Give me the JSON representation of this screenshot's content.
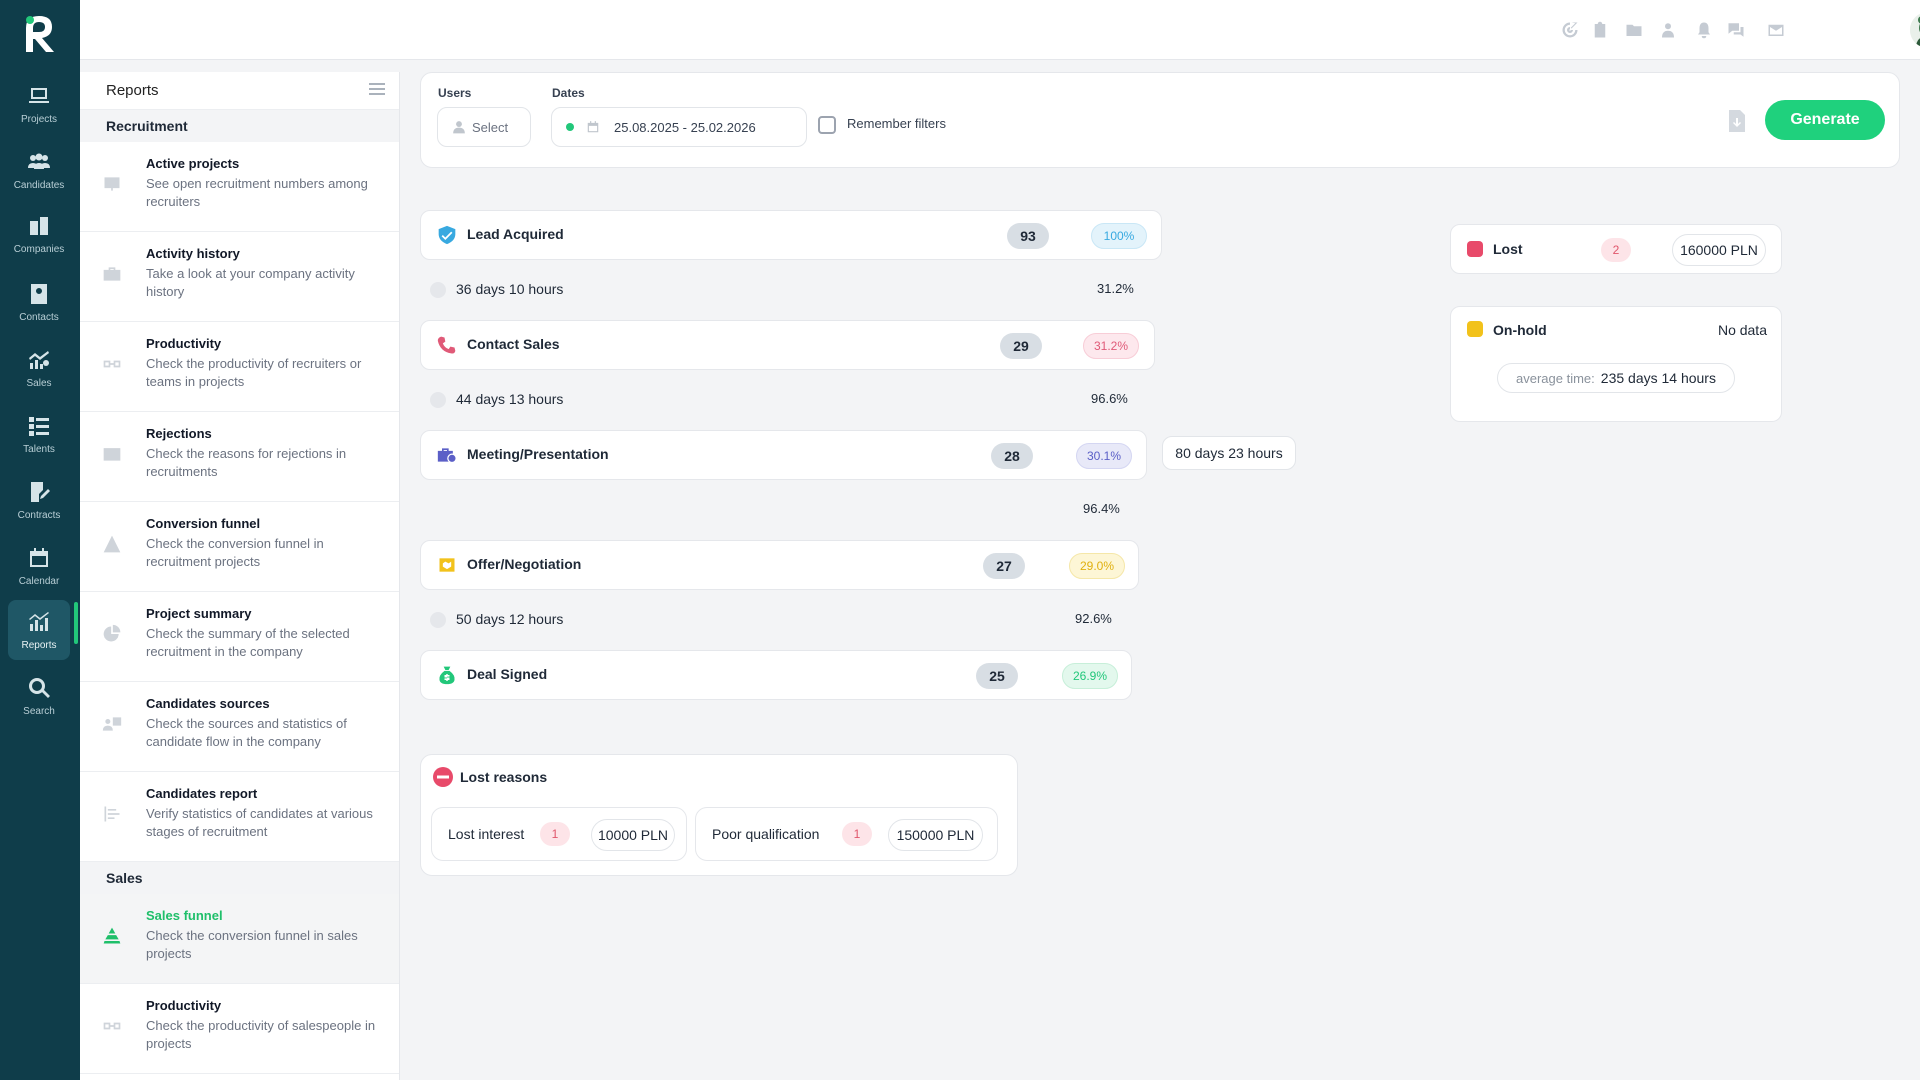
{
  "nav": {
    "items": [
      {
        "label": "Projects",
        "icon": "laptop-icon"
      },
      {
        "label": "Candidates",
        "icon": "people-icon"
      },
      {
        "label": "Companies",
        "icon": "building-icon"
      },
      {
        "label": "Contacts",
        "icon": "contact-card-icon"
      },
      {
        "label": "Sales",
        "icon": "sales-chart-icon"
      },
      {
        "label": "Talents",
        "icon": "talents-list-icon"
      },
      {
        "label": "Contracts",
        "icon": "contract-icon"
      },
      {
        "label": "Calendar",
        "icon": "calendar-icon"
      },
      {
        "label": "Reports",
        "icon": "reports-icon"
      },
      {
        "label": "Search",
        "icon": "search-icon"
      }
    ],
    "active": "Reports"
  },
  "reports_sidebar": {
    "title": "Reports",
    "sections": [
      {
        "title": "Recruitment",
        "items": [
          {
            "title": "Active projects",
            "desc": "See open recruitment numbers among recruiters"
          },
          {
            "title": "Activity history",
            "desc": "Take a look at your company activity history"
          },
          {
            "title": "Productivity",
            "desc": "Check the productivity of recruiters or teams in projects"
          },
          {
            "title": "Rejections",
            "desc": "Check the reasons for rejections in recruitments"
          },
          {
            "title": "Conversion funnel",
            "desc": "Check the conversion funnel in recruitment projects"
          },
          {
            "title": "Project summary",
            "desc": "Check the summary of the selected recruitment in the company"
          },
          {
            "title": "Candidates sources",
            "desc": "Check the sources and statistics of candidate flow in the company"
          },
          {
            "title": "Candidates report",
            "desc": "Verify statistics of candidates at various stages of recruitment"
          }
        ]
      },
      {
        "title": "Sales",
        "items": [
          {
            "title": "Sales funnel",
            "desc": "Check the conversion funnel in sales projects"
          },
          {
            "title": "Productivity",
            "desc": "Check the productivity of salespeople in projects"
          }
        ]
      }
    ]
  },
  "filters": {
    "users_label": "Users",
    "users_placeholder": "Select",
    "dates_label": "Dates",
    "dates_value": "25.08.2025 - 25.02.2026",
    "remember_label": "Remember filters",
    "generate_label": "Generate"
  },
  "funnel": {
    "stages": [
      {
        "name": "Lead Acquired",
        "count": "93",
        "percent": "100%",
        "color": "#38a9e0"
      },
      {
        "name": "Contact Sales",
        "count": "29",
        "percent": "31.2%",
        "color": "#e05a78"
      },
      {
        "name": "Meeting/Presentation",
        "count": "28",
        "percent": "30.1%",
        "color": "#5b5fc7"
      },
      {
        "name": "Offer/Negotiation",
        "count": "27",
        "percent": "29.0%",
        "color": "#f2c21b"
      },
      {
        "name": "Deal Signed",
        "count": "25",
        "percent": "26.9%",
        "color": "#22c77a"
      }
    ],
    "transitions": [
      {
        "duration": "36 days 10 hours",
        "percent": "31.2%"
      },
      {
        "duration": "44 days 13 hours",
        "percent": "96.6%"
      },
      {
        "duration": "",
        "percent": "96.4%"
      },
      {
        "duration": "50 days 12 hours",
        "percent": "92.6%"
      }
    ],
    "side_duration": "80 days 23 hours"
  },
  "lost_card": {
    "label": "Lost",
    "count": "2",
    "amount": "160000 PLN",
    "color": "#e84a6a"
  },
  "onhold_card": {
    "label": "On-hold",
    "value": "No data",
    "avg_label": "average time:",
    "avg_value": "235 days 14 hours",
    "color": "#f2c21b"
  },
  "lost_reasons": {
    "title": "Lost reasons",
    "items": [
      {
        "name": "Lost interest",
        "count": "1",
        "amount": "10000 PLN"
      },
      {
        "name": "Poor qualification",
        "count": "1",
        "amount": "150000 PLN"
      }
    ]
  }
}
